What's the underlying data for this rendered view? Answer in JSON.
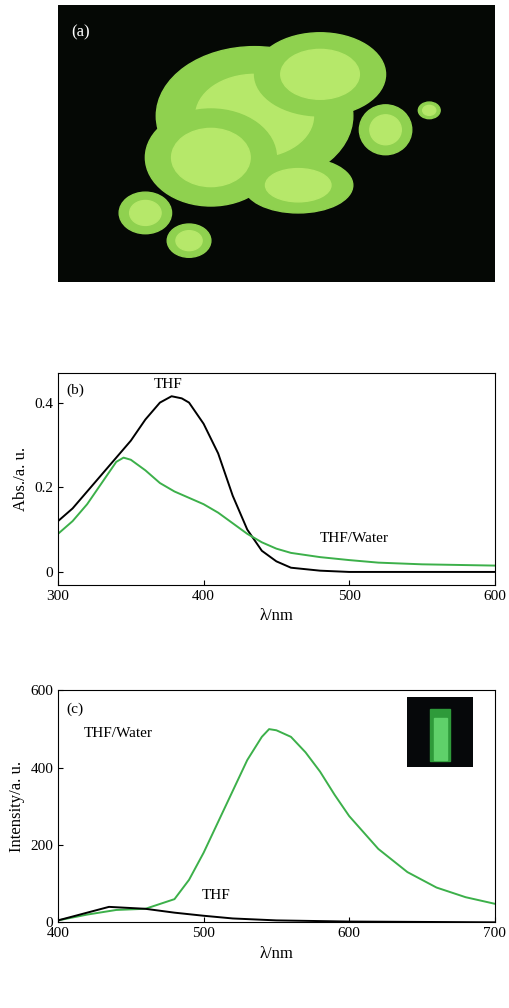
{
  "image_panel": {
    "label": "(a)"
  },
  "chart_data": [
    {
      "type": "line",
      "panel_label": "(b)",
      "x_label": "λ/nm",
      "y_label": "Abs./a. u.",
      "xlim": [
        300,
        600
      ],
      "xticks": [
        300,
        400,
        500,
        600
      ],
      "ylim": [
        -0.03,
        0.47
      ],
      "yticks": [
        0,
        0.2,
        0.4
      ],
      "series": [
        {
          "name": "THF",
          "color": "#000000",
          "x": [
            300,
            310,
            320,
            330,
            340,
            350,
            360,
            370,
            378,
            385,
            390,
            400,
            410,
            420,
            430,
            440,
            450,
            460,
            480,
            500,
            600
          ],
          "values": [
            0.12,
            0.15,
            0.19,
            0.23,
            0.27,
            0.31,
            0.36,
            0.4,
            0.415,
            0.41,
            0.4,
            0.35,
            0.28,
            0.18,
            0.1,
            0.05,
            0.025,
            0.01,
            0.003,
            0,
            0
          ]
        },
        {
          "name": "THF/Water",
          "color": "#3cb04a",
          "x": [
            300,
            310,
            320,
            330,
            340,
            345,
            350,
            360,
            370,
            380,
            390,
            400,
            410,
            420,
            430,
            440,
            450,
            460,
            480,
            500,
            520,
            550,
            600
          ],
          "values": [
            0.09,
            0.12,
            0.16,
            0.21,
            0.26,
            0.27,
            0.265,
            0.24,
            0.21,
            0.19,
            0.175,
            0.16,
            0.14,
            0.115,
            0.09,
            0.07,
            0.055,
            0.045,
            0.035,
            0.028,
            0.022,
            0.018,
            0.015
          ]
        }
      ]
    },
    {
      "type": "line",
      "panel_label": "(c)",
      "x_label": "λ/nm",
      "y_label": "Intensity/a. u.",
      "xlim": [
        400,
        700
      ],
      "xticks": [
        400,
        500,
        600,
        700
      ],
      "ylim": [
        0,
        600
      ],
      "yticks": [
        0,
        200,
        400,
        600
      ],
      "series": [
        {
          "name": "THF/Water",
          "color": "#3cb04a",
          "x": [
            400,
            420,
            440,
            460,
            480,
            490,
            500,
            510,
            520,
            530,
            540,
            545,
            550,
            560,
            570,
            580,
            590,
            600,
            620,
            640,
            660,
            680,
            700
          ],
          "values": [
            5,
            20,
            32,
            35,
            60,
            110,
            180,
            260,
            340,
            420,
            480,
            500,
            497,
            480,
            440,
            390,
            330,
            275,
            190,
            130,
            90,
            65,
            48
          ]
        },
        {
          "name": "THF",
          "color": "#000000",
          "x": [
            400,
            420,
            435,
            445,
            460,
            480,
            500,
            520,
            550,
            600,
            650,
            700
          ],
          "values": [
            5,
            25,
            40,
            38,
            35,
            25,
            17,
            10,
            5,
            2,
            1,
            0
          ]
        }
      ]
    }
  ]
}
